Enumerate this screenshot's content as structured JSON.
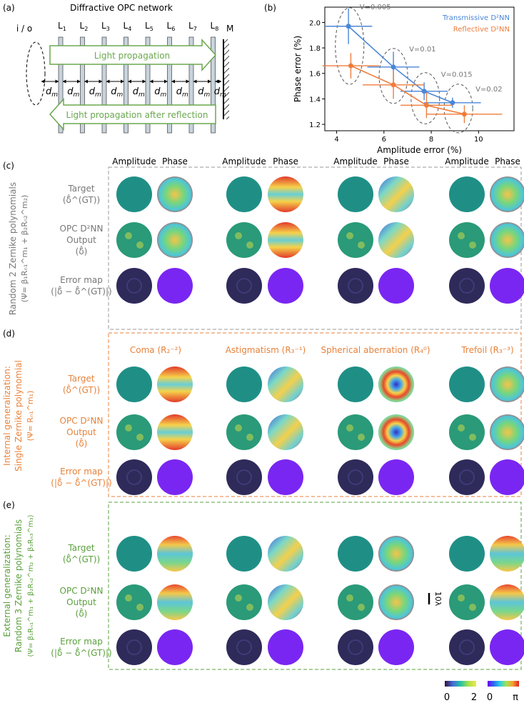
{
  "panel_a": {
    "label": "(a)",
    "title": "Diffractive OPC network",
    "io": "i / o",
    "layers": [
      "L1",
      "L2",
      "L3",
      "L4",
      "L5",
      "L6",
      "L7",
      "L8"
    ],
    "mirror": "M",
    "forward": "Light propagation",
    "backward": "Light propagation after reflection",
    "spacing": "dm"
  },
  "panel_b": {
    "label": "(b)"
  },
  "chart_data": {
    "type": "scatter",
    "xlabel": "Amplitude error (%)",
    "ylabel": "Phase error (%)",
    "xlim": [
      3.5,
      11.5
    ],
    "ylim": [
      1.15,
      2.12
    ],
    "xticks": [
      4,
      6,
      8,
      10
    ],
    "yticks": [
      1.2,
      1.4,
      1.6,
      1.8,
      2.0
    ],
    "legend": "top-right",
    "series": [
      {
        "name": "Transmissive D²NN",
        "color": "#4a86d8",
        "x": [
          4.5,
          6.4,
          7.7,
          8.9
        ],
        "y": [
          1.97,
          1.65,
          1.46,
          1.37
        ],
        "xerr": [
          1.0,
          1.1,
          1.0,
          1.2
        ],
        "yerr": [
          0.14,
          0.12,
          0.07,
          0.04
        ]
      },
      {
        "name": "Reflective D²NN",
        "color": "#ef7d3c",
        "x": [
          4.6,
          6.4,
          7.8,
          9.4
        ],
        "y": [
          1.66,
          1.51,
          1.35,
          1.28
        ],
        "xerr": [
          1.2,
          1.3,
          1.1,
          1.6
        ],
        "yerr": [
          0.1,
          0.11,
          0.1,
          0.07
        ]
      }
    ],
    "annotations": [
      "V=0.005",
      "V=0.01",
      "V=0.015",
      "V=0.02"
    ]
  },
  "panel_c": {
    "label": "(c)",
    "col_headers": [
      "Amplitude",
      "Phase",
      "Amplitude",
      "Phase",
      "Amplitude",
      "Phase",
      "Amplitude",
      "Phase"
    ],
    "side_title": "Random 2 Zernike polynomials",
    "side_formula": "(Ψ= β₁Rₙ₁^m₁ + β₂Rₙ₂^m₂)",
    "rows": [
      "Target",
      "(δ̂^(GT))",
      "OPC D²NN",
      "Output",
      "(δ̂)",
      "Error map",
      "(|δ̂ − δ̂^(GT)|)"
    ]
  },
  "panel_d": {
    "label": "(d)",
    "col_headers": [
      "Coma (R₂⁻²)",
      "Astigmatism (R₃⁻¹)",
      "Spherical aberration (R₄⁰)",
      "Trefoil (R₃⁻³)"
    ],
    "side_title": "Internal generalization:",
    "side_sub": "Single Zernike polynomial",
    "side_formula": "(Ψ= Rₙ₁^m₁)",
    "rows": [
      "Target",
      "(δ̂^(GT))",
      "OPC D²NN",
      "Output",
      "(δ̂)",
      "Error map",
      "(|δ̂ − δ̂^(GT)|)"
    ]
  },
  "panel_e": {
    "label": "(e)",
    "side_title": "External generalization:",
    "side_sub": "Random 3 Zernike polynomials",
    "side_formula": "(Ψ= β₁Rₙ₁^m₁ + β₂Rₙ₂^m₂ + β₃Rₙ₃^m₃)",
    "rows": [
      "Target",
      "(δ̂^(GT))",
      "OPC D²NN",
      "Output",
      "(δ̂)",
      "Error map",
      "(|δ̂ − δ̂^(GT)|)"
    ],
    "scale_bar": "10λ"
  },
  "colorbars": {
    "amp_min": "0",
    "amp_max": "2",
    "phase_min": "0",
    "phase_max": "π"
  }
}
